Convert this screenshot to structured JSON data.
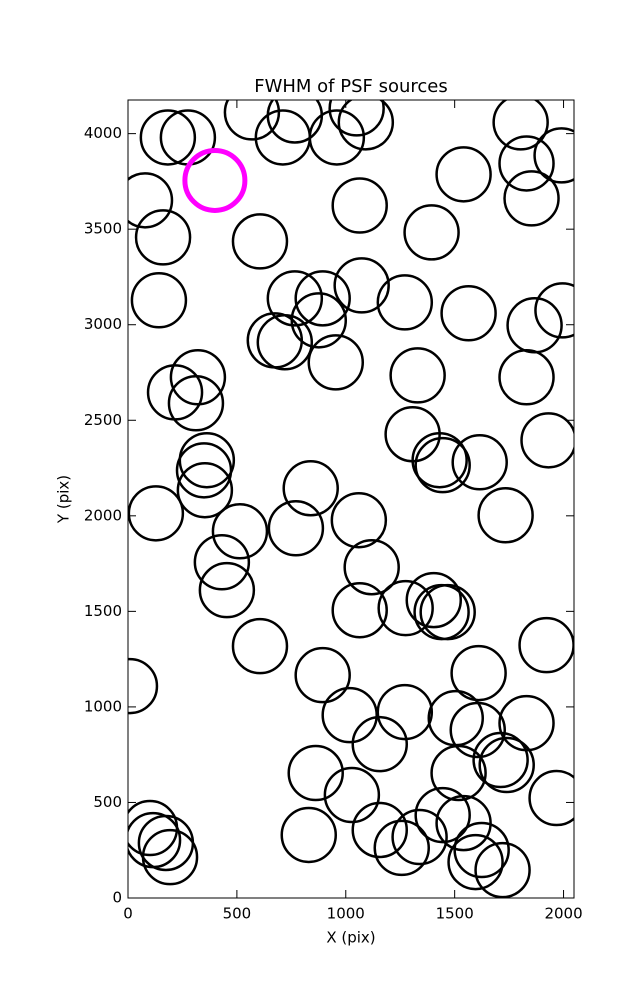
{
  "chart_data": {
    "type": "scatter",
    "title": "FWHM of PSF sources",
    "x_label": "X (pix)",
    "y_label": "Y (pix)",
    "xlim": [
      0,
      2048
    ],
    "ylim": [
      0,
      4176
    ],
    "xticks": [
      0,
      500,
      1000,
      1500,
      2000
    ],
    "yticks": [
      0,
      500,
      1000,
      1500,
      2000,
      2500,
      3000,
      3500,
      4000
    ],
    "series": [
      {
        "color": "#000000",
        "x": [
          183,
          275,
          569,
          711,
          766,
          959,
          1050,
          1092,
          1803,
          1830,
          1991,
          78,
          161,
          606,
          1064,
          1394,
          1541,
          1853,
          142,
          766,
          894,
          876,
          1073,
          1271,
          1564,
          1867,
          1995,
          674,
          720,
          954,
          1330,
          1830,
          321,
          216,
          312,
          1307,
          1931,
          362,
          349,
          353,
          1431,
          1445,
          1615,
          839,
          128,
          514,
          771,
          1060,
          1734,
          431,
          1119,
          454,
          1404,
          1275,
          1440,
          1468,
          1064,
          606,
          1922,
          9,
          894,
          1610,
          1018,
          1271,
          1505,
          1606,
          1830,
          1156,
          1711,
          1739,
          862,
          1518,
          1028,
          1968,
          101,
          115,
          174,
          193,
          830,
          1156,
          1339,
          1257,
          1445,
          1541,
          1624,
          1596,
          1720
        ],
        "y": [
          3980,
          3980,
          4111,
          3980,
          4095,
          3980,
          4132,
          4059,
          4059,
          3844,
          3886,
          3651,
          3457,
          3436,
          3624,
          3483,
          3787,
          3661,
          3128,
          3138,
          3138,
          3023,
          3206,
          3117,
          3060,
          2997,
          3075,
          2918,
          2908,
          2803,
          2735,
          2725,
          2725,
          2646,
          2589,
          2427,
          2395,
          2291,
          2238,
          2134,
          2291,
          2265,
          2280,
          2144,
          2013,
          1919,
          1935,
          1977,
          2003,
          1757,
          1731,
          1611,
          1559,
          1517,
          1496,
          1496,
          1506,
          1318,
          1323,
          1109,
          1166,
          1177,
          957,
          973,
          941,
          879,
          915,
          805,
          722,
          696,
          654,
          654,
          539,
          523,
          366,
          303,
          288,
          214,
          330,
          356,
          319,
          262,
          434,
          392,
          251,
          188,
          146
        ]
      },
      {
        "color": "#ff00ff",
        "x": [
          399
        ],
        "y": [
          3755
        ]
      }
    ]
  }
}
